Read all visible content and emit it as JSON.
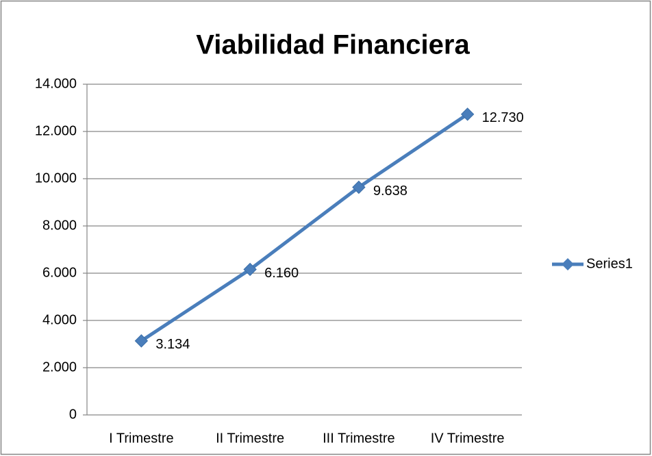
{
  "chart_data": {
    "type": "line",
    "title": "Viabilidad Financiera",
    "categories": [
      "I Trimestre",
      "II Trimestre",
      "III Trimestre",
      "IV Trimestre"
    ],
    "series": [
      {
        "name": "Series1",
        "color": "#4a7ebb",
        "values": [
          3134,
          6160,
          9638,
          12730
        ],
        "value_labels": [
          "3.134",
          "6.160",
          "9.638",
          "12.730"
        ]
      }
    ],
    "ylim": [
      0,
      14000
    ],
    "yticks": [
      0,
      {
        "value": 2000,
        "label": "2.000"
      },
      {
        "value": 4000,
        "label": "4.000"
      },
      {
        "value": 6000,
        "label": "6.000"
      },
      {
        "value": 8000,
        "label": "8.000"
      },
      {
        "value": 10000,
        "label": "10.000"
      },
      {
        "value": 12000,
        "label": "12.000"
      },
      {
        "value": 14000,
        "label": "14.000"
      }
    ],
    "grid": true,
    "legend": "right"
  }
}
